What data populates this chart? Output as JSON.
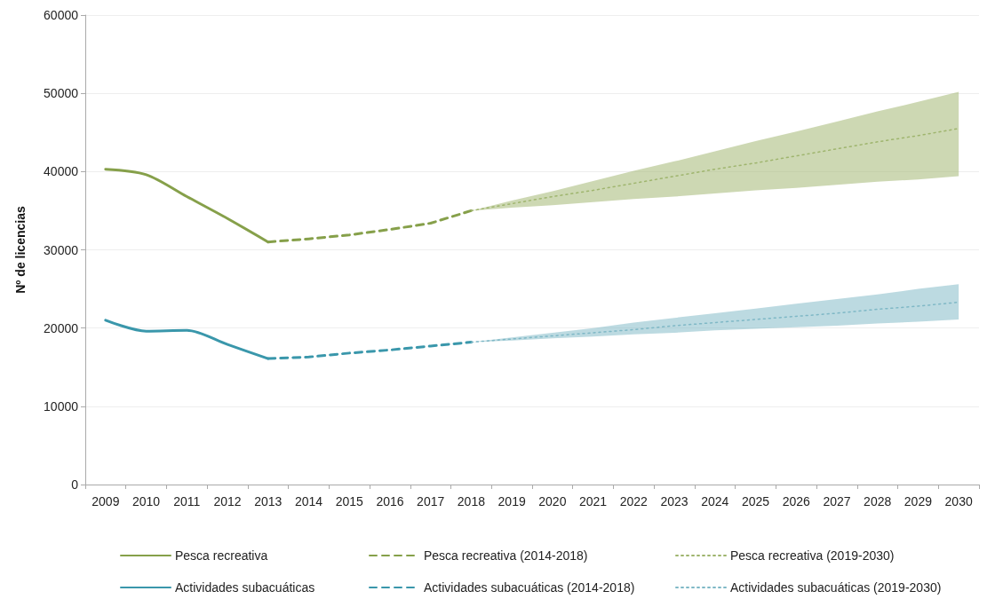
{
  "chart_data": {
    "type": "line",
    "ylabel": "Nº de licencias",
    "categories": [
      "2009",
      "2010",
      "2011",
      "2012",
      "2013",
      "2014",
      "2015",
      "2016",
      "2017",
      "2018",
      "2019",
      "2020",
      "2021",
      "2022",
      "2023",
      "2024",
      "2025",
      "2026",
      "2027",
      "2028",
      "2029",
      "2030"
    ],
    "series": [
      {
        "name": "Pesca recreativa",
        "color": "#86a04a",
        "line_style": "solid",
        "values": [
          40300,
          39600,
          36800,
          34000,
          31000,
          null,
          null,
          null,
          null,
          null,
          null,
          null,
          null,
          null,
          null,
          null,
          null,
          null,
          null,
          null,
          null,
          null
        ]
      },
      {
        "name": "Pesca recreativa (2014-2018)",
        "color": "#86a04a",
        "line_style": "dashed",
        "values": [
          null,
          null,
          null,
          null,
          31000,
          31400,
          31900,
          32600,
          33400,
          35000,
          null,
          null,
          null,
          null,
          null,
          null,
          null,
          null,
          null,
          null,
          null,
          null
        ]
      },
      {
        "name": "Pesca recreativa (2019-2030)",
        "color": "#9fb56e",
        "line_style": "dotted",
        "values": [
          null,
          null,
          null,
          null,
          null,
          null,
          null,
          null,
          null,
          35000,
          35900,
          36800,
          37600,
          38500,
          39400,
          40300,
          41100,
          42000,
          42900,
          43800,
          44600,
          45500
        ],
        "lower": [
          null,
          null,
          null,
          null,
          null,
          null,
          null,
          null,
          null,
          35000,
          35400,
          35700,
          36100,
          36500,
          36800,
          37200,
          37600,
          37900,
          38300,
          38700,
          39000,
          39400
        ],
        "upper": [
          null,
          null,
          null,
          null,
          null,
          null,
          null,
          null,
          null,
          35000,
          36300,
          37500,
          38800,
          40100,
          41300,
          42600,
          43900,
          45100,
          46400,
          47700,
          48900,
          50200
        ]
      },
      {
        "name": "Actividades subacuáticas",
        "color": "#3a97ab",
        "line_style": "solid",
        "values": [
          21000,
          19600,
          19700,
          17900,
          16100,
          null,
          null,
          null,
          null,
          null,
          null,
          null,
          null,
          null,
          null,
          null,
          null,
          null,
          null,
          null,
          null,
          null
        ]
      },
      {
        "name": "Actividades subacuáticas (2014-2018)",
        "color": "#3a97ab",
        "line_style": "dashed",
        "values": [
          null,
          null,
          null,
          null,
          16100,
          16300,
          16800,
          17200,
          17700,
          18200,
          null,
          null,
          null,
          null,
          null,
          null,
          null,
          null,
          null,
          null,
          null,
          null
        ]
      },
      {
        "name": "Actividades subacuáticas (2019-2030)",
        "color": "#7fb8c6",
        "line_style": "dotted",
        "values": [
          null,
          null,
          null,
          null,
          null,
          null,
          null,
          null,
          null,
          18200,
          18600,
          19000,
          19400,
          19800,
          20300,
          20700,
          21100,
          21500,
          21900,
          22400,
          22800,
          23300
        ],
        "lower": [
          null,
          null,
          null,
          null,
          null,
          null,
          null,
          null,
          null,
          18200,
          18400,
          18700,
          18900,
          19200,
          19400,
          19700,
          19900,
          20100,
          20300,
          20600,
          20800,
          21100
        ],
        "upper": [
          null,
          null,
          null,
          null,
          null,
          null,
          null,
          null,
          null,
          18200,
          18800,
          19400,
          20000,
          20700,
          21300,
          21900,
          22500,
          23100,
          23700,
          24300,
          25000,
          25600
        ]
      }
    ],
    "ylim": [
      0,
      60000
    ],
    "yticks": [
      0,
      10000,
      20000,
      30000,
      40000,
      50000,
      60000
    ],
    "grid": "y",
    "legend": "bottom",
    "marker": "none"
  }
}
